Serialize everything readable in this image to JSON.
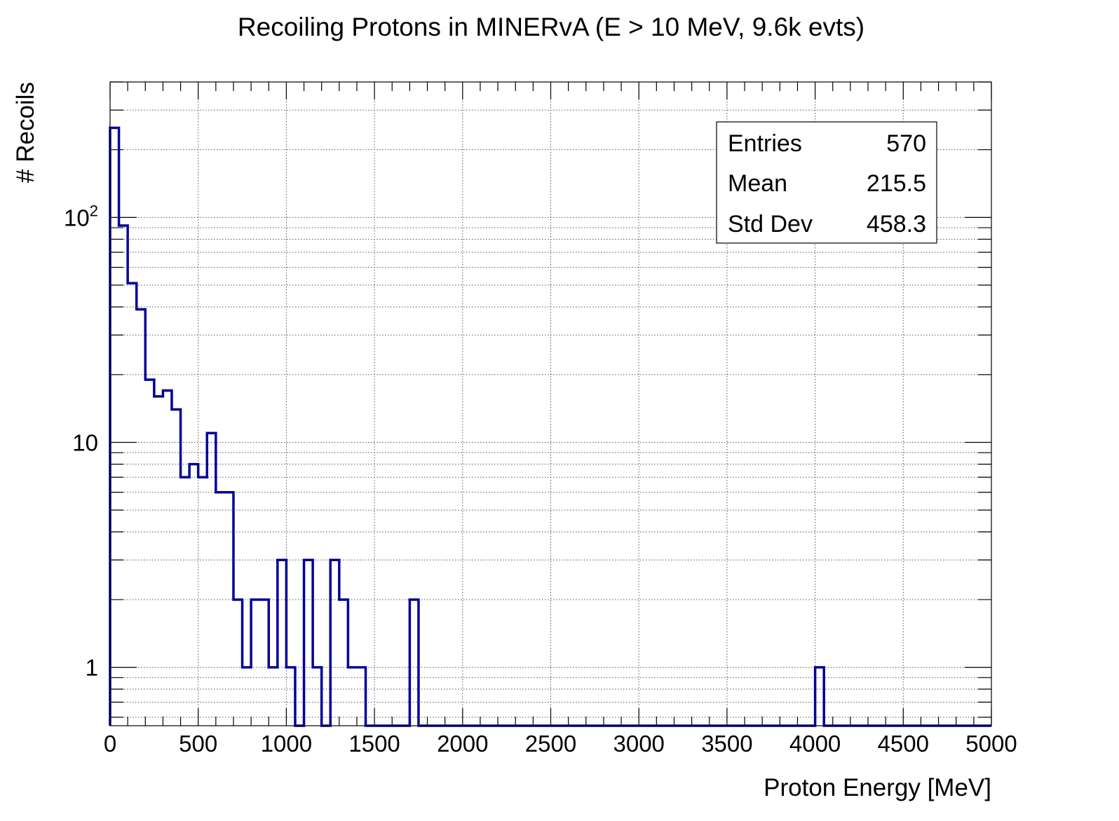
{
  "chart_data": {
    "type": "histogram",
    "title": "Recoiling Protons in MINERvA (E > 10 MeV, 9.6k evts)",
    "xlabel": "Proton Energy [MeV]",
    "ylabel": "# Recoils",
    "x_range": [
      0,
      5000
    ],
    "y_scale": "log",
    "y_range": [
      0.55,
      400
    ],
    "bin_width": 50,
    "grid": true,
    "x_ticks": [
      {
        "value": 0,
        "label": "0"
      },
      {
        "value": 500,
        "label": "500"
      },
      {
        "value": 1000,
        "label": "1000"
      },
      {
        "value": 1500,
        "label": "1500"
      },
      {
        "value": 2000,
        "label": "2000"
      },
      {
        "value": 2500,
        "label": "2500"
      },
      {
        "value": 3000,
        "label": "3000"
      },
      {
        "value": 3500,
        "label": "3500"
      },
      {
        "value": 4000,
        "label": "4000"
      },
      {
        "value": 4500,
        "label": "4500"
      },
      {
        "value": 5000,
        "label": "5000"
      }
    ],
    "y_ticks": [
      {
        "value": 1,
        "label": "1"
      },
      {
        "value": 10,
        "label": "10"
      },
      {
        "value": 100,
        "label": "10",
        "exponent": "2"
      }
    ],
    "counts": [
      250,
      92,
      51,
      39,
      19,
      16,
      17,
      14,
      7,
      8,
      7,
      11,
      6,
      6,
      2,
      1,
      2,
      2,
      1,
      3,
      1,
      0,
      3,
      1,
      0,
      3,
      2,
      1,
      1,
      0,
      0,
      0,
      0,
      0,
      2,
      0,
      0,
      0,
      0,
      0,
      0,
      0,
      0,
      0,
      0,
      0,
      0,
      0,
      0,
      0,
      0,
      0,
      0,
      0,
      0,
      0,
      0,
      0,
      0,
      0,
      0,
      0,
      0,
      0,
      0,
      0,
      0,
      0,
      0,
      0,
      0,
      0,
      0,
      0,
      0,
      0,
      0,
      0,
      0,
      0,
      1,
      0,
      0,
      0,
      0,
      0,
      0,
      0,
      0,
      0,
      0,
      0,
      0,
      0,
      0,
      0,
      0,
      0,
      0,
      0
    ],
    "series_color": "#000099",
    "stats": [
      {
        "label": "Entries",
        "value": "570"
      },
      {
        "label": "Mean",
        "value": "215.5"
      },
      {
        "label": "Std Dev",
        "value": "458.3"
      }
    ]
  }
}
